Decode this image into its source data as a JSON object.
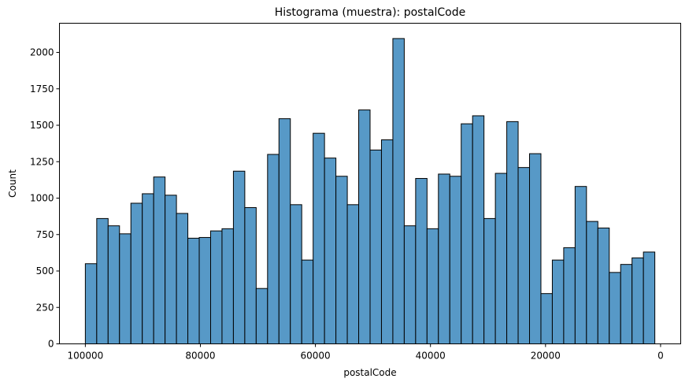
{
  "chart_data": {
    "type": "bar",
    "title": "Histograma (muestra): postalCode",
    "xlabel": "postalCode",
    "ylabel": "Count",
    "x_axis_inverted": true,
    "xlim": [
      104500,
      -3500
    ],
    "ylim": [
      0,
      2200
    ],
    "xticks": [
      100000,
      80000,
      60000,
      40000,
      20000,
      0
    ],
    "yticks": [
      0,
      250,
      500,
      750,
      1000,
      1250,
      1500,
      1750,
      2000
    ],
    "bin_start": 100000,
    "bin_end": 1000,
    "bin_count": 50,
    "values": [
      550,
      860,
      810,
      755,
      965,
      1030,
      1145,
      1020,
      895,
      725,
      730,
      775,
      790,
      1185,
      935,
      380,
      1300,
      1545,
      955,
      575,
      1445,
      1275,
      1150,
      955,
      1605,
      1330,
      1400,
      2095,
      810,
      1135,
      790,
      1165,
      1150,
      1510,
      1565,
      860,
      1170,
      1525,
      1210,
      1305,
      345,
      575,
      660,
      1080,
      840,
      795,
      490,
      545,
      590,
      630
    ],
    "bar_color": "#5799c7",
    "edge_color": "#000000",
    "grid": false
  }
}
